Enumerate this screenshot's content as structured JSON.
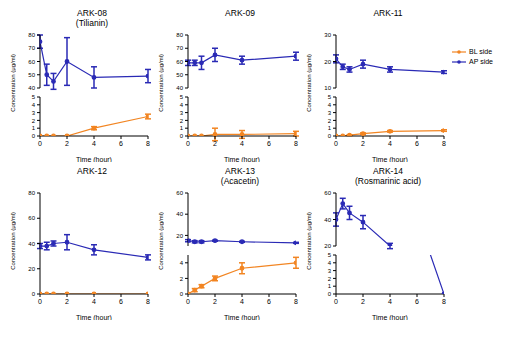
{
  "chart_data": [
    {
      "type": "line",
      "title": "ARK-08",
      "subtitle": "(Tilianin)",
      "xlabel": "Time (hour)",
      "ylabel": "Concentration (μg/ml)",
      "x": [
        0,
        0.5,
        1,
        2,
        4,
        8
      ],
      "xlim": [
        0,
        8
      ],
      "xticks": [
        0,
        2,
        4,
        6,
        8
      ],
      "y_segments": [
        {
          "ylim": [
            40,
            80
          ],
          "yticks": [
            40,
            50,
            60,
            70,
            80
          ]
        },
        {
          "ylim": [
            0,
            5
          ],
          "yticks": [
            0,
            1,
            2,
            3,
            4,
            5
          ]
        }
      ],
      "series": [
        {
          "name": "BL side",
          "color": "#f28522",
          "marker": "circle",
          "line_style": "solid",
          "values": [
            0,
            0,
            0,
            0,
            1.0,
            2.5
          ],
          "errors": [
            0,
            0,
            0,
            0,
            0.2,
            0.3
          ]
        },
        {
          "name": "AP side",
          "color": "#2a2ab5",
          "marker": "circle",
          "line_style": "solid",
          "values": [
            75,
            50,
            45,
            60,
            48,
            49
          ],
          "errors": [
            5,
            8,
            6,
            18,
            8,
            5
          ]
        }
      ]
    },
    {
      "type": "line",
      "title": "ARK-09",
      "xlabel": "Time (hour)",
      "ylabel": "Concentration (μg/ml)",
      "x": [
        0,
        0.5,
        1,
        2,
        4,
        8
      ],
      "xlim": [
        0,
        8
      ],
      "xticks": [
        0,
        2,
        4,
        6,
        8
      ],
      "y_segments": [
        {
          "ylim": [
            40,
            80
          ],
          "yticks": [
            40,
            50,
            60,
            70,
            80
          ]
        },
        {
          "ylim": [
            0,
            5
          ],
          "yticks": [
            0,
            1,
            2,
            3,
            4,
            5
          ]
        }
      ],
      "series": [
        {
          "name": "BL side",
          "color": "#f28522",
          "marker": "circle",
          "line_style": "solid",
          "values": [
            0,
            0,
            0,
            0.2,
            0.2,
            0.3
          ],
          "errors": [
            0,
            0,
            0,
            0.8,
            0.5,
            0.3
          ]
        },
        {
          "name": "AP side",
          "color": "#2a2ab5",
          "marker": "circle",
          "line_style": "solid",
          "values": [
            59,
            59,
            59,
            65,
            61,
            64
          ],
          "errors": [
            2,
            2,
            5,
            5,
            3,
            3
          ]
        }
      ]
    },
    {
      "type": "line",
      "title": "ARK-11",
      "xlabel": "Time (hour)",
      "ylabel": "Concentration (μg/ml)",
      "legend": "right",
      "x": [
        0,
        0.5,
        1,
        2,
        4,
        8
      ],
      "xlim": [
        0,
        8
      ],
      "xticks": [
        0,
        2,
        4,
        6,
        8
      ],
      "y_segments": [
        {
          "ylim": [
            10,
            30
          ],
          "yticks": [
            10,
            20,
            30
          ]
        },
        {
          "ylim": [
            0,
            5
          ],
          "yticks": [
            0,
            1,
            2,
            3,
            4,
            5
          ]
        }
      ],
      "series": [
        {
          "name": "BL side",
          "color": "#f28522",
          "marker": "circle",
          "line_style": "solid",
          "values": [
            0,
            0,
            0.1,
            0.3,
            0.6,
            0.7
          ],
          "errors": [
            0,
            0,
            0.05,
            0.1,
            0.1,
            0.1
          ]
        },
        {
          "name": "AP side",
          "color": "#2a2ab5",
          "marker": "circle",
          "line_style": "solid",
          "values": [
            21,
            18,
            17,
            19,
            17,
            16
          ],
          "errors": [
            1.5,
            1,
            1,
            1.5,
            1,
            0.5
          ]
        }
      ]
    },
    {
      "type": "line",
      "title": "ARK-12",
      "xlabel": "Time (hour)",
      "ylabel": "Concentration (μg/ml)",
      "x": [
        0,
        0.5,
        1,
        2,
        4,
        8
      ],
      "xlim": [
        0,
        8
      ],
      "xticks": [
        0,
        2,
        4,
        6,
        8
      ],
      "y_segments": [
        {
          "ylim": [
            0,
            80
          ],
          "yticks": [
            0,
            20,
            40,
            60,
            80
          ]
        }
      ],
      "series": [
        {
          "name": "BL side",
          "color": "#f28522",
          "marker": "circle",
          "line_style": "solid",
          "values": [
            0,
            0,
            0,
            0,
            0,
            0
          ],
          "errors": [
            0,
            0,
            0,
            0,
            0,
            0
          ]
        },
        {
          "name": "AP side",
          "color": "#2a2ab5",
          "marker": "circle",
          "line_style": "solid",
          "values": [
            38,
            38,
            40,
            41,
            35,
            29
          ],
          "errors": [
            2,
            3,
            2,
            6,
            4,
            2
          ]
        }
      ]
    },
    {
      "type": "line",
      "title": "ARK-13",
      "subtitle": "(Acacetin)",
      "xlabel": "Time (hour)",
      "ylabel": "Concentration (μg/ml)",
      "x": [
        0,
        0.5,
        1,
        2,
        4,
        8
      ],
      "xlim": [
        0,
        8
      ],
      "xticks": [
        0,
        2,
        4,
        6,
        8
      ],
      "y_segments": [
        {
          "ylim": [
            10,
            60
          ],
          "yticks": [
            20,
            40,
            60
          ]
        },
        {
          "ylim": [
            0,
            5
          ],
          "yticks": [
            0,
            2,
            4
          ]
        }
      ],
      "series": [
        {
          "name": "BL side",
          "color": "#f28522",
          "marker": "circle",
          "line_style": "solid",
          "values": [
            0,
            0.5,
            1.0,
            2.0,
            3.3,
            4.0
          ],
          "errors": [
            0,
            0.2,
            0.2,
            0.3,
            0.7,
            0.7
          ]
        },
        {
          "name": "AP side",
          "color": "#2a2ab5",
          "marker": "circle",
          "line_style": "solid",
          "values": [
            15,
            14,
            14,
            15,
            14,
            13
          ],
          "errors": [
            1,
            1,
            1,
            0.5,
            0.5,
            0.5
          ]
        }
      ]
    },
    {
      "type": "line",
      "title": "ARK-14",
      "subtitle": "(Rosmarinic acid)",
      "xlabel": "Time (hour)",
      "ylabel": "Concentration (μg/ml)",
      "x": [
        0,
        0.5,
        1,
        2,
        4,
        8
      ],
      "xlim": [
        0,
        8
      ],
      "xticks": [
        0,
        2,
        4,
        6,
        8
      ],
      "y_segments": [
        {
          "ylim": [
            20,
            60
          ],
          "yticks": [
            20,
            40,
            60
          ]
        },
        {
          "ylim": [
            0,
            5
          ],
          "yticks": [
            0,
            1,
            2,
            3,
            4,
            5
          ]
        }
      ],
      "series": [
        {
          "name": "AP side",
          "color": "#2a2ab5",
          "marker": "circle",
          "line_style": "solid",
          "values": [
            40,
            52,
            45,
            38,
            20,
            0
          ],
          "errors": [
            5,
            4,
            5,
            5,
            2,
            0
          ]
        }
      ]
    }
  ]
}
